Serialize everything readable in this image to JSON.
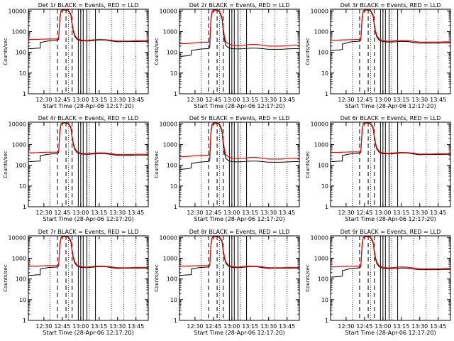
{
  "chart_data": {
    "type": "line",
    "layout": "3x3 grid of identical log-scale time-series panels",
    "y_scale": "log",
    "ylim": [
      1,
      12000
    ],
    "y_ticks": [
      "1",
      "10",
      "100",
      "1000",
      "10000"
    ],
    "ylabel": "Counts/sec",
    "xlabel": "Start Time (28-Apr-06 12:17:20)",
    "x_tick_labels": [
      "12:30",
      "12:45",
      "13:00",
      "13:15",
      "13:30",
      "13:45"
    ],
    "xlim": [
      "12:17:20",
      "13:55:00"
    ],
    "series_colors": {
      "events": "#000000",
      "lld": "#ff0000"
    },
    "panels": [
      {
        "title": "Det 1r BLACK = Events, RED = LLD",
        "time": [
          "12:17:20",
          "12:20",
          "12:25",
          "12:27",
          "12:27",
          "12:30",
          "12:33",
          "12:36",
          "12:39",
          "12:41",
          "12:41",
          "12:42",
          "12:43",
          "12:44",
          "12:46",
          "12:48",
          "12:50",
          "12:52",
          "12:53",
          "12:54",
          "12:55",
          "12:57",
          "13:00",
          "13:05",
          "13:10",
          "13:15",
          "13:20",
          "13:25",
          "13:30",
          "13:35",
          "13:40",
          "13:45",
          "13:50",
          "13:55"
        ],
        "events": [
          150,
          150,
          160,
          160,
          300,
          320,
          350,
          360,
          370,
          380,
          400,
          420,
          4000,
          10000,
          11000,
          11000,
          10000,
          6000,
          2000,
          1000,
          600,
          420,
          360,
          350,
          370,
          400,
          390,
          350,
          320,
          330,
          330,
          330,
          340,
          340
        ],
        "lld": [
          420,
          420,
          420,
          430,
          430,
          430,
          440,
          440,
          440,
          430,
          450,
          480,
          5000,
          10500,
          11500,
          11500,
          10500,
          7000,
          2500,
          1200,
          700,
          470,
          390,
          370,
          400,
          420,
          410,
          380,
          350,
          350,
          350,
          360,
          360,
          360
        ]
      },
      {
        "title": "Det 2r BLACK = Events, RED = LLD",
        "time": [
          "12:17:20",
          "12:20",
          "12:25",
          "12:27",
          "12:27",
          "12:30",
          "12:33",
          "12:36",
          "12:39",
          "12:41",
          "12:41",
          "12:42",
          "12:43",
          "12:44",
          "12:46",
          "12:48",
          "12:50",
          "12:52",
          "12:53",
          "12:54",
          "12:55",
          "12:57",
          "13:00",
          "13:05",
          "13:10",
          "13:15",
          "13:20",
          "13:25",
          "13:30",
          "13:35",
          "13:40",
          "13:45",
          "13:50",
          "13:55"
        ],
        "events": [
          60,
          65,
          70,
          75,
          120,
          130,
          140,
          145,
          150,
          150,
          155,
          165,
          3500,
          9000,
          10500,
          10500,
          9000,
          4000,
          1000,
          400,
          220,
          170,
          150,
          145,
          150,
          160,
          160,
          150,
          140,
          140,
          140,
          145,
          150,
          150
        ],
        "lld": [
          260,
          260,
          270,
          280,
          280,
          290,
          300,
          300,
          310,
          300,
          310,
          320,
          4500,
          10000,
          11000,
          11000,
          10000,
          5000,
          1500,
          600,
          330,
          260,
          220,
          210,
          220,
          240,
          240,
          220,
          200,
          200,
          200,
          210,
          220,
          220
        ]
      },
      {
        "title": "Det 3r BLACK = Events, RED = LLD",
        "time": [
          "12:17:20",
          "12:20",
          "12:25",
          "12:27",
          "12:27",
          "12:30",
          "12:33",
          "12:36",
          "12:39",
          "12:41",
          "12:41",
          "12:42",
          "12:43",
          "12:44",
          "12:46",
          "12:48",
          "12:50",
          "12:52",
          "12:53",
          "12:54",
          "12:55",
          "12:57",
          "13:00",
          "13:05",
          "13:10",
          "13:15",
          "13:20",
          "13:25",
          "13:30",
          "13:35",
          "13:40",
          "13:45",
          "13:50",
          "13:55"
        ],
        "events": [
          120,
          125,
          130,
          140,
          250,
          280,
          310,
          330,
          340,
          350,
          360,
          380,
          3800,
          9800,
          11000,
          11000,
          9800,
          5500,
          1800,
          900,
          550,
          380,
          330,
          310,
          320,
          340,
          330,
          300,
          280,
          280,
          280,
          280,
          290,
          290
        ],
        "lld": [
          380,
          380,
          390,
          400,
          400,
          400,
          410,
          410,
          420,
          410,
          420,
          440,
          4800,
          10300,
          11500,
          11500,
          10300,
          6500,
          2300,
          1100,
          650,
          430,
          370,
          340,
          360,
          380,
          370,
          340,
          310,
          310,
          310,
          310,
          320,
          320
        ]
      },
      {
        "title": "Det 4r BLACK = Events, RED = LLD",
        "time": [
          "12:17:20",
          "12:20",
          "12:25",
          "12:27",
          "12:27",
          "12:30",
          "12:33",
          "12:36",
          "12:39",
          "12:41",
          "12:41",
          "12:42",
          "12:43",
          "12:44",
          "12:46",
          "12:48",
          "12:50",
          "12:52",
          "12:53",
          "12:54",
          "12:55",
          "12:57",
          "13:00",
          "13:05",
          "13:10",
          "13:15",
          "13:20",
          "13:25",
          "13:30",
          "13:35",
          "13:40",
          "13:45",
          "13:50",
          "13:55"
        ],
        "events": [
          150,
          150,
          160,
          160,
          290,
          310,
          340,
          350,
          360,
          370,
          390,
          410,
          3900,
          9900,
          11000,
          11000,
          10000,
          6000,
          2000,
          1000,
          600,
          410,
          350,
          340,
          350,
          370,
          360,
          330,
          300,
          300,
          300,
          310,
          310,
          310
        ],
        "lld": [
          400,
          400,
          410,
          420,
          420,
          420,
          430,
          430,
          430,
          420,
          440,
          470,
          4900,
          10400,
          11500,
          11500,
          10500,
          7000,
          2500,
          1200,
          700,
          460,
          380,
          360,
          380,
          400,
          390,
          360,
          330,
          330,
          330,
          340,
          340,
          340
        ]
      },
      {
        "title": "Det 5r BLACK = Events, RED = LLD",
        "time": [
          "12:17:20",
          "12:20",
          "12:25",
          "12:27",
          "12:27",
          "12:30",
          "12:33",
          "12:36",
          "12:39",
          "12:41",
          "12:41",
          "12:42",
          "12:43",
          "12:44",
          "12:46",
          "12:48",
          "12:50",
          "12:52",
          "12:53",
          "12:54",
          "12:55",
          "12:57",
          "13:00",
          "13:05",
          "13:10",
          "13:15",
          "13:20",
          "13:25",
          "13:30",
          "13:35",
          "13:40",
          "13:45",
          "13:50",
          "13:55"
        ],
        "events": [
          60,
          65,
          70,
          75,
          120,
          130,
          140,
          145,
          150,
          150,
          155,
          165,
          3500,
          9000,
          10500,
          10500,
          9000,
          4000,
          1000,
          400,
          220,
          170,
          150,
          145,
          150,
          160,
          160,
          150,
          140,
          140,
          140,
          145,
          150,
          150
        ],
        "lld": [
          260,
          260,
          270,
          280,
          280,
          290,
          300,
          300,
          310,
          300,
          310,
          320,
          4500,
          10000,
          11000,
          11000,
          10000,
          5000,
          1500,
          600,
          330,
          260,
          220,
          210,
          220,
          240,
          240,
          220,
          200,
          200,
          200,
          210,
          220,
          220
        ]
      },
      {
        "title": "Det 6r BLACK = Events, RED = LLD",
        "time": [
          "12:17:20",
          "12:20",
          "12:25",
          "12:27",
          "12:27",
          "12:30",
          "12:33",
          "12:36",
          "12:39",
          "12:41",
          "12:41",
          "12:42",
          "12:43",
          "12:44",
          "12:46",
          "12:48",
          "12:50",
          "12:52",
          "12:53",
          "12:54",
          "12:55",
          "12:57",
          "13:00",
          "13:05",
          "13:10",
          "13:15",
          "13:20",
          "13:25",
          "13:30",
          "13:35",
          "13:40",
          "13:45",
          "13:50",
          "13:55"
        ],
        "events": [
          150,
          150,
          160,
          160,
          300,
          320,
          350,
          360,
          370,
          380,
          400,
          420,
          4000,
          10000,
          11000,
          11000,
          10000,
          6000,
          2000,
          1000,
          600,
          420,
          360,
          350,
          370,
          400,
          390,
          350,
          320,
          330,
          330,
          330,
          340,
          340
        ],
        "lld": [
          420,
          420,
          420,
          430,
          430,
          430,
          440,
          440,
          440,
          430,
          450,
          480,
          5000,
          10500,
          11500,
          11500,
          10500,
          7000,
          2500,
          1200,
          700,
          470,
          390,
          370,
          400,
          420,
          410,
          380,
          350,
          350,
          350,
          360,
          360,
          360
        ]
      },
      {
        "title": "Det 7r BLACK = Events, RED = LLD",
        "time": [
          "12:17:20",
          "12:20",
          "12:25",
          "12:27",
          "12:27",
          "12:30",
          "12:33",
          "12:36",
          "12:39",
          "12:41",
          "12:41",
          "12:42",
          "12:43",
          "12:44",
          "12:46",
          "12:48",
          "12:50",
          "12:52",
          "12:53",
          "12:54",
          "12:55",
          "12:57",
          "13:00",
          "13:05",
          "13:10",
          "13:15",
          "13:20",
          "13:25",
          "13:30",
          "13:35",
          "13:40",
          "13:45",
          "13:50",
          "13:55"
        ],
        "events": [
          150,
          150,
          160,
          160,
          300,
          320,
          350,
          360,
          370,
          380,
          400,
          420,
          4000,
          10000,
          11000,
          11000,
          10000,
          6000,
          2000,
          1000,
          600,
          420,
          360,
          350,
          370,
          400,
          390,
          350,
          320,
          330,
          330,
          330,
          340,
          340
        ],
        "lld": [
          420,
          420,
          420,
          430,
          430,
          430,
          440,
          440,
          440,
          430,
          450,
          480,
          5000,
          10500,
          11500,
          11500,
          10500,
          7000,
          2500,
          1200,
          700,
          470,
          390,
          370,
          400,
          420,
          410,
          380,
          350,
          350,
          350,
          360,
          360,
          360
        ]
      },
      {
        "title": "Det 8r BLACK = Events, RED = LLD",
        "time": [
          "12:17:20",
          "12:20",
          "12:25",
          "12:27",
          "12:27",
          "12:30",
          "12:33",
          "12:36",
          "12:39",
          "12:41",
          "12:41",
          "12:42",
          "12:43",
          "12:44",
          "12:46",
          "12:48",
          "12:50",
          "12:52",
          "12:53",
          "12:54",
          "12:55",
          "12:57",
          "13:00",
          "13:05",
          "13:10",
          "13:15",
          "13:20",
          "13:25",
          "13:30",
          "13:35",
          "13:40",
          "13:45",
          "13:50",
          "13:55"
        ],
        "events": [
          150,
          150,
          160,
          160,
          300,
          320,
          350,
          360,
          370,
          380,
          400,
          420,
          4000,
          10000,
          11000,
          11000,
          10000,
          6000,
          2000,
          1000,
          600,
          420,
          360,
          350,
          370,
          400,
          390,
          350,
          320,
          330,
          330,
          330,
          340,
          340
        ],
        "lld": [
          420,
          420,
          420,
          430,
          430,
          430,
          440,
          440,
          440,
          430,
          450,
          480,
          5000,
          10500,
          11500,
          11500,
          10500,
          7000,
          2500,
          1200,
          700,
          470,
          390,
          370,
          400,
          420,
          410,
          380,
          350,
          350,
          350,
          360,
          360,
          360
        ]
      },
      {
        "title": "Det 9r BLACK = Events, RED = LLD",
        "time": [
          "12:17:20",
          "12:20",
          "12:25",
          "12:27",
          "12:27",
          "12:30",
          "12:33",
          "12:36",
          "12:39",
          "12:41",
          "12:41",
          "12:42",
          "12:43",
          "12:44",
          "12:46",
          "12:48",
          "12:50",
          "12:52",
          "12:53",
          "12:54",
          "12:55",
          "12:57",
          "13:00",
          "13:05",
          "13:10",
          "13:15",
          "13:20",
          "13:25",
          "13:30",
          "13:35",
          "13:40",
          "13:45",
          "13:50",
          "13:55"
        ],
        "events": [
          120,
          125,
          130,
          140,
          250,
          280,
          310,
          330,
          340,
          350,
          360,
          380,
          3800,
          9800,
          11000,
          11000,
          9800,
          5500,
          1800,
          900,
          550,
          380,
          330,
          310,
          320,
          340,
          330,
          300,
          280,
          280,
          280,
          280,
          290,
          290
        ],
        "lld": [
          380,
          380,
          390,
          400,
          400,
          400,
          410,
          410,
          420,
          410,
          420,
          440,
          4800,
          10300,
          11500,
          11500,
          10300,
          6500,
          2300,
          1100,
          650,
          430,
          370,
          340,
          360,
          380,
          370,
          340,
          310,
          310,
          310,
          310,
          320,
          320
        ]
      }
    ],
    "dashed_markers": [
      "12:41",
      "12:48",
      "12:53"
    ],
    "solid_markers": [
      "12:58",
      "13:00",
      "13:02",
      "13:05",
      "13:12"
    ],
    "dotted_markers": [
      "12:35",
      "12:50",
      "13:07",
      "13:25",
      "13:35",
      "13:45"
    ]
  }
}
